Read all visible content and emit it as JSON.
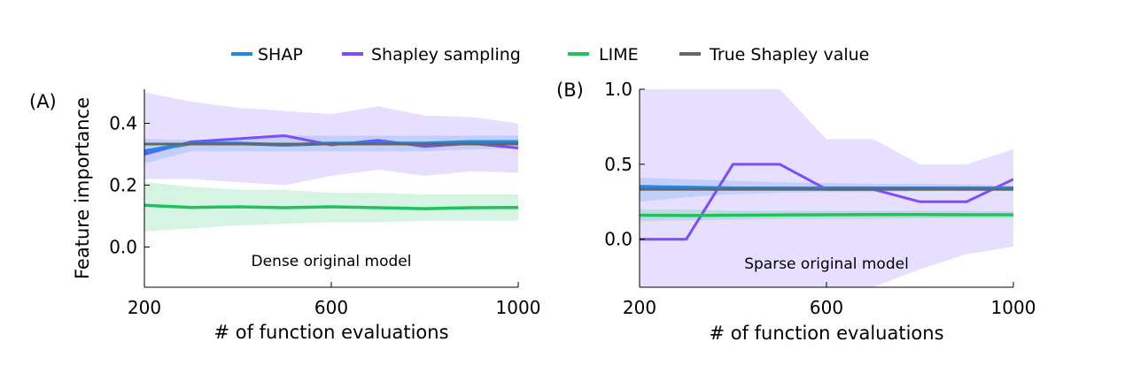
{
  "legend": [
    {
      "label": "SHAP",
      "color": "#1e88e5"
    },
    {
      "label": "Shapley sampling",
      "color": "#7c4dff"
    },
    {
      "label": "LIME",
      "color": "#1ec35f"
    },
    {
      "label": "True Shapley value",
      "color": "#666666"
    }
  ],
  "chart_data": [
    {
      "type": "line",
      "panel_label": "(A)",
      "annotation": "Dense original model",
      "xlabel": "# of function evaluations",
      "ylabel": "Feature importance",
      "xlim": [
        200,
        1000
      ],
      "ylim": [
        -0.13,
        0.51
      ],
      "xticks": [
        200,
        600,
        1000
      ],
      "yticks": [
        0.0,
        0.2,
        0.4
      ],
      "ytick_labels": [
        "0.0",
        "0.2",
        "0.4"
      ],
      "grid": false,
      "legend_position": "top (shared)",
      "x": [
        200,
        300,
        400,
        500,
        600,
        700,
        800,
        900,
        1000
      ],
      "series": [
        {
          "name": "Shapley sampling",
          "color": "#7c4dff",
          "values": [
            0.3,
            0.34,
            0.35,
            0.36,
            0.33,
            0.345,
            0.325,
            0.335,
            0.32
          ],
          "band_upper": [
            0.5,
            0.47,
            0.45,
            0.44,
            0.43,
            0.455,
            0.425,
            0.42,
            0.4
          ],
          "band_lower": [
            0.22,
            0.22,
            0.21,
            0.2,
            0.23,
            0.25,
            0.23,
            0.245,
            0.24
          ]
        },
        {
          "name": "SHAP",
          "color": "#1e88e5",
          "values": [
            0.31,
            0.335,
            0.335,
            0.33,
            0.335,
            0.335,
            0.335,
            0.34,
            0.34
          ],
          "band_upper": [
            0.35,
            0.345,
            0.35,
            0.36,
            0.36,
            0.36,
            0.36,
            0.36,
            0.36
          ],
          "band_lower": [
            0.27,
            0.31,
            0.31,
            0.31,
            0.31,
            0.31,
            0.31,
            0.315,
            0.32
          ]
        },
        {
          "name": "LIME",
          "color": "#1ec35f",
          "values": [
            0.135,
            0.128,
            0.13,
            0.127,
            0.13,
            0.127,
            0.124,
            0.127,
            0.128
          ],
          "band_upper": [
            0.21,
            0.195,
            0.185,
            0.185,
            0.175,
            0.175,
            0.17,
            0.17,
            0.17
          ],
          "band_lower": [
            0.05,
            0.06,
            0.07,
            0.075,
            0.08,
            0.08,
            0.085,
            0.085,
            0.085
          ]
        },
        {
          "name": "True Shapley value",
          "color": "#666666",
          "values": [
            0.333,
            0.333,
            0.333,
            0.333,
            0.333,
            0.333,
            0.333,
            0.333,
            0.333
          ]
        }
      ]
    },
    {
      "type": "line",
      "panel_label": "(B)",
      "annotation": "Sparse original model",
      "xlabel": "# of function evaluations",
      "ylabel": "",
      "xlim": [
        200,
        1000
      ],
      "ylim": [
        -0.32,
        1.0
      ],
      "xticks": [
        200,
        600,
        1000
      ],
      "yticks": [
        0.0,
        0.5,
        1.0
      ],
      "ytick_labels": [
        "0.0",
        "0.5",
        "1.0"
      ],
      "grid": false,
      "x": [
        200,
        300,
        400,
        500,
        600,
        700,
        800,
        900,
        1000
      ],
      "series": [
        {
          "name": "Shapley sampling",
          "color": "#7c4dff",
          "values": [
            0.0,
            0.0,
            0.5,
            0.5,
            0.333,
            0.333,
            0.25,
            0.25,
            0.4
          ],
          "band_upper": [
            1.0,
            1.0,
            1.0,
            1.0,
            0.667,
            0.667,
            0.5,
            0.5,
            0.6
          ],
          "band_lower": [
            -0.32,
            -0.32,
            -0.32,
            -0.32,
            -0.32,
            -0.32,
            -0.2,
            -0.1,
            -0.05
          ]
        },
        {
          "name": "SHAP",
          "color": "#1e88e5",
          "values": [
            0.35,
            0.345,
            0.34,
            0.34,
            0.34,
            0.34,
            0.34,
            0.34,
            0.34
          ],
          "band_upper": [
            0.41,
            0.4,
            0.39,
            0.38,
            0.375,
            0.37,
            0.37,
            0.365,
            0.36
          ],
          "band_lower": [
            0.25,
            0.28,
            0.3,
            0.31,
            0.315,
            0.315,
            0.32,
            0.32,
            0.32
          ]
        },
        {
          "name": "LIME",
          "color": "#1ec35f",
          "values": [
            0.16,
            0.158,
            0.16,
            0.162,
            0.163,
            0.165,
            0.165,
            0.163,
            0.163
          ],
          "band_upper": [
            0.2,
            0.2,
            0.19,
            0.19,
            0.19,
            0.19,
            0.19,
            0.19,
            0.185
          ],
          "band_lower": [
            0.12,
            0.125,
            0.13,
            0.135,
            0.135,
            0.135,
            0.14,
            0.14,
            0.14
          ]
        },
        {
          "name": "True Shapley value",
          "color": "#666666",
          "values": [
            0.333,
            0.333,
            0.333,
            0.333,
            0.333,
            0.333,
            0.333,
            0.333,
            0.333
          ]
        }
      ]
    }
  ]
}
